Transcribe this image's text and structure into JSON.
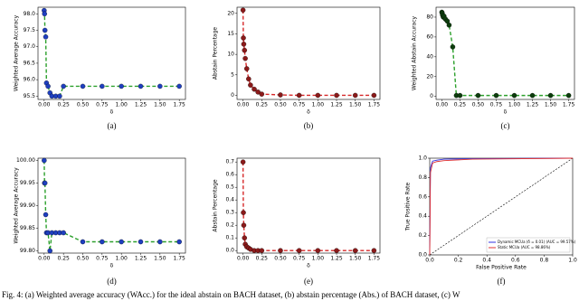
{
  "caption": "Fig. 4: (a) Weighted average accuracy (WAcc.) for the ideal abstain on BACH dataset, (b) abstain percentage (Abs.) of BACH dataset, (c) W",
  "chart_data": [
    {
      "type": "line",
      "label": "(a)",
      "xlabel": "δ",
      "ylabel": "Weighted Average Accuracy",
      "color": "#2ca02c",
      "marker_color": "#1f3fbf",
      "dashed": true,
      "markers": true,
      "x": [
        0,
        0.005,
        0.01,
        0.02,
        0.03,
        0.05,
        0.075,
        0.1,
        0.15,
        0.2,
        0.25,
        0.5,
        0.75,
        1.0,
        1.25,
        1.5,
        1.75
      ],
      "values": [
        98.1,
        98.0,
        97.5,
        97.3,
        95.9,
        95.8,
        95.6,
        95.5,
        95.5,
        95.5,
        95.8,
        95.8,
        95.8,
        95.8,
        95.8,
        95.8,
        95.8
      ],
      "xlim": [
        -0.08,
        1.83
      ],
      "ylim": [
        95.4,
        98.2
      ],
      "xticks": [
        {
          "value": 0,
          "label": "0.00"
        },
        {
          "value": 0.25,
          "label": "0.25"
        },
        {
          "value": 0.5,
          "label": "0.50"
        },
        {
          "value": 0.75,
          "label": "0.75"
        },
        {
          "value": 1,
          "label": "1.00"
        },
        {
          "value": 1.25,
          "label": "1.25"
        },
        {
          "value": 1.5,
          "label": "1.50"
        },
        {
          "value": 1.75,
          "label": "1.75"
        }
      ],
      "yticks": [
        95.5,
        {
          "value": 96,
          "label": "96.0"
        },
        96.5,
        {
          "value": 97,
          "label": "97.0"
        },
        97.5,
        {
          "value": 98,
          "label": "98.0"
        }
      ]
    },
    {
      "type": "line",
      "label": "(b)",
      "xlabel": "δ",
      "ylabel": "Abstain Percentage",
      "color": "#d62728",
      "marker_color": "#8b1a1a",
      "dashed": true,
      "markers": true,
      "x": [
        0,
        0.005,
        0.01,
        0.02,
        0.03,
        0.05,
        0.075,
        0.1,
        0.15,
        0.2,
        0.25,
        0.5,
        0.75,
        1.0,
        1.25,
        1.5,
        1.75
      ],
      "values": [
        20.8,
        14,
        12.5,
        11,
        9,
        6.5,
        4,
        2.5,
        1.5,
        0.8,
        0.3,
        0.1,
        0,
        0,
        0,
        0,
        0
      ],
      "xlim": [
        -0.08,
        1.83
      ],
      "ylim": [
        -1,
        21.5
      ],
      "xticks": [
        {
          "value": 0,
          "label": "0.00"
        },
        {
          "value": 0.25,
          "label": "0.25"
        },
        {
          "value": 0.5,
          "label": "0.50"
        },
        {
          "value": 0.75,
          "label": "0.75"
        },
        {
          "value": 1,
          "label": "1.00"
        },
        {
          "value": 1.25,
          "label": "1.25"
        },
        {
          "value": 1.5,
          "label": "1.50"
        },
        {
          "value": 1.75,
          "label": "1.75"
        }
      ],
      "yticks": [
        0,
        5,
        10,
        15,
        20
      ]
    },
    {
      "type": "line",
      "label": "(c)",
      "xlabel": "δ",
      "ylabel": "Weighted Abstain Accuracy",
      "color": "#2ca02c",
      "marker_color": "#0d3d0d",
      "dashed": true,
      "markers": true,
      "x": [
        0,
        0.005,
        0.01,
        0.02,
        0.03,
        0.05,
        0.075,
        0.1,
        0.15,
        0.2,
        0.25,
        0.5,
        0.75,
        1.0,
        1.25,
        1.5,
        1.75
      ],
      "values": [
        85,
        84,
        82,
        80,
        81,
        78,
        76,
        72,
        50,
        1,
        1,
        1,
        1,
        1,
        1,
        1,
        1
      ],
      "xlim": [
        -0.08,
        1.83
      ],
      "ylim": [
        -3,
        90
      ],
      "xticks": [
        {
          "value": 0,
          "label": "0.00"
        },
        {
          "value": 0.25,
          "label": "0.25"
        },
        {
          "value": 0.5,
          "label": "0.50"
        },
        {
          "value": 0.75,
          "label": "0.75"
        },
        {
          "value": 1,
          "label": "1.00"
        },
        {
          "value": 1.25,
          "label": "1.25"
        },
        {
          "value": 1.5,
          "label": "1.50"
        },
        {
          "value": 1.75,
          "label": "1.75"
        }
      ],
      "yticks": [
        0,
        20,
        40,
        60,
        80
      ]
    },
    {
      "type": "line",
      "label": "(d)",
      "xlabel": "δ",
      "ylabel": "Weighted Average Accuracy",
      "color": "#2ca02c",
      "marker_color": "#1f3fbf",
      "dashed": true,
      "markers": true,
      "x": [
        0,
        0.005,
        0.01,
        0.02,
        0.03,
        0.05,
        0.075,
        0.1,
        0.15,
        0.2,
        0.25,
        0.5,
        0.75,
        1.0,
        1.25,
        1.5,
        1.75
      ],
      "values": [
        100,
        99.95,
        99.95,
        99.88,
        99.84,
        99.84,
        99.8,
        99.84,
        99.84,
        99.84,
        99.84,
        99.82,
        99.82,
        99.82,
        99.82,
        99.82,
        99.82
      ],
      "xlim": [
        -0.08,
        1.83
      ],
      "ylim": [
        99.795,
        100.005
      ],
      "xticks": [
        {
          "value": 0,
          "label": "0.00"
        },
        {
          "value": 0.25,
          "label": "0.25"
        },
        {
          "value": 0.5,
          "label": "0.50"
        },
        {
          "value": 0.75,
          "label": "0.75"
        },
        {
          "value": 1,
          "label": "1.00"
        },
        {
          "value": 1.25,
          "label": "1.25"
        },
        {
          "value": 1.5,
          "label": "1.50"
        },
        {
          "value": 1.75,
          "label": "1.75"
        }
      ],
      "yticks": [
        {
          "value": 99.8,
          "label": "99.80"
        },
        99.85,
        {
          "value": 99.9,
          "label": "99.90"
        },
        99.95,
        {
          "value": 100,
          "label": "100.00"
        }
      ]
    },
    {
      "type": "line",
      "label": "(e)",
      "xlabel": "δ",
      "ylabel": "Abstain Percentage",
      "color": "#d62728",
      "marker_color": "#8b1a1a",
      "dashed": true,
      "markers": true,
      "x": [
        0,
        0.005,
        0.01,
        0.02,
        0.03,
        0.05,
        0.075,
        0.1,
        0.15,
        0.2,
        0.25,
        0.5,
        0.75,
        1.0,
        1.25,
        1.5,
        1.75
      ],
      "values": [
        0.7,
        0.3,
        0.2,
        0.1,
        0.05,
        0.03,
        0.02,
        0.01,
        0,
        0,
        0,
        0,
        0,
        0,
        0,
        0,
        0
      ],
      "xlim": [
        -0.08,
        1.83
      ],
      "ylim": [
        -0.02,
        0.73
      ],
      "xticks": [
        {
          "value": 0,
          "label": "0.00"
        },
        {
          "value": 0.25,
          "label": "0.25"
        },
        {
          "value": 0.5,
          "label": "0.50"
        },
        {
          "value": 0.75,
          "label": "0.75"
        },
        {
          "value": 1,
          "label": "1.00"
        },
        {
          "value": 1.25,
          "label": "1.25"
        },
        {
          "value": 1.5,
          "label": "1.50"
        },
        {
          "value": 1.75,
          "label": "1.75"
        }
      ],
      "yticks": [
        {
          "value": 0,
          "label": "0.0"
        },
        0.1,
        0.2,
        0.3,
        0.4,
        0.5,
        0.6,
        0.7
      ]
    },
    {
      "type": "line",
      "label": "(f)",
      "xlabel": "False Positive Rate",
      "ylabel": "True Positive Rate",
      "dashed": false,
      "markers": false,
      "legend": "lower right",
      "x": [
        0,
        0.005,
        0.02,
        0.05,
        0.1,
        0.3,
        1
      ],
      "series": [
        {
          "name": "Dynamic MCUa (δ = 0.01) (AUC = 99.57%)",
          "color": "#3030e0",
          "values": [
            0,
            0.9,
            0.97,
            0.98,
            0.99,
            0.995,
            1
          ]
        },
        {
          "name": "Static MCUa (AUC = 98.86%)",
          "color": "#e03030",
          "values": [
            0,
            0.85,
            0.95,
            0.965,
            0.975,
            0.99,
            1
          ]
        }
      ],
      "xlim": [
        0,
        1
      ],
      "ylim": [
        0,
        1
      ],
      "xticks": [
        {
          "value": 0,
          "label": "0.0"
        },
        0.2,
        0.4,
        0.6,
        0.8,
        {
          "value": 1,
          "label": "1.0"
        }
      ],
      "yticks": [
        {
          "value": 0,
          "label": "0.0"
        },
        0.2,
        0.4,
        0.6,
        0.8,
        {
          "value": 1,
          "label": "1.0"
        }
      ]
    }
  ]
}
